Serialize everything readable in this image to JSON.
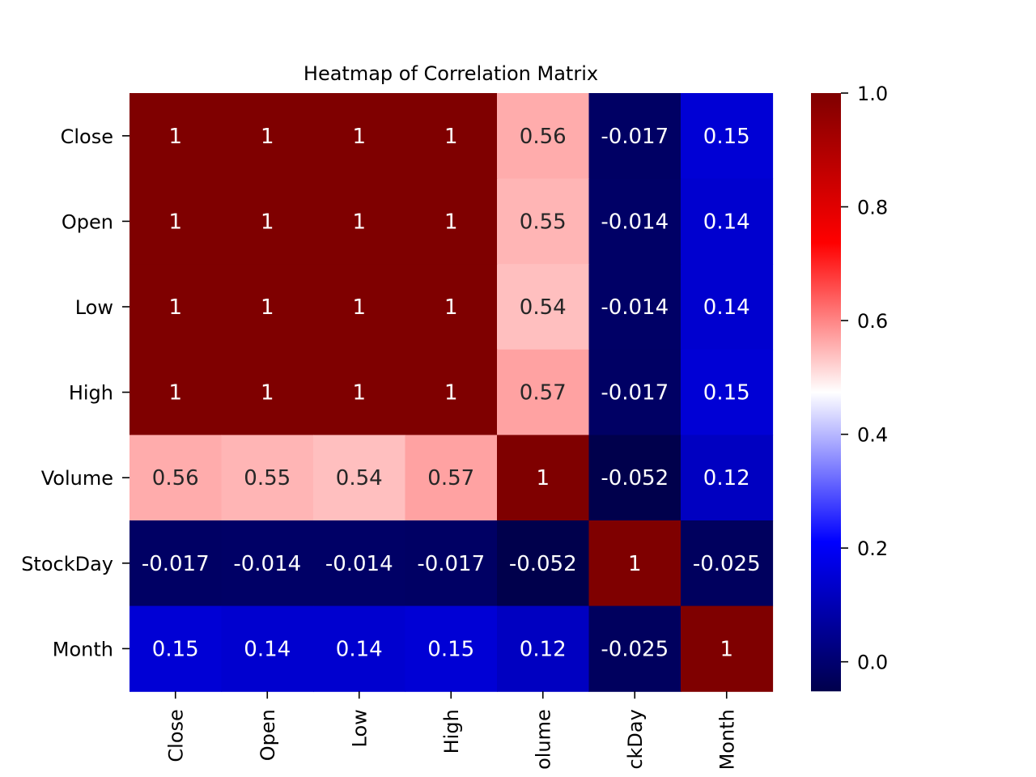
{
  "chart_data": {
    "type": "heatmap",
    "title": "Heatmap of Correlation Matrix",
    "rows": [
      "Close",
      "Open",
      "Low",
      "High",
      "Volume",
      "StockDay",
      "Month"
    ],
    "cols": [
      "Close",
      "Open",
      "Low",
      "High",
      "Volume",
      "StockDay",
      "Month"
    ],
    "x_tick_labels_visible": [
      "Close",
      "Open",
      "Low",
      "High",
      "olume",
      "ckDay",
      "Month"
    ],
    "values": [
      [
        1,
        1,
        1,
        1,
        0.56,
        -0.017,
        0.15
      ],
      [
        1,
        1,
        1,
        1,
        0.55,
        -0.014,
        0.14
      ],
      [
        1,
        1,
        1,
        1,
        0.54,
        -0.014,
        0.14
      ],
      [
        1,
        1,
        1,
        1,
        0.57,
        -0.017,
        0.15
      ],
      [
        0.56,
        0.55,
        0.54,
        0.57,
        1,
        -0.052,
        0.12
      ],
      [
        -0.017,
        -0.014,
        -0.014,
        -0.017,
        -0.052,
        1,
        -0.025
      ],
      [
        0.15,
        0.14,
        0.14,
        0.15,
        0.12,
        -0.025,
        1
      ]
    ],
    "annotations": [
      [
        "1",
        "1",
        "1",
        "1",
        "0.56",
        "-0.017",
        "0.15"
      ],
      [
        "1",
        "1",
        "1",
        "1",
        "0.55",
        "-0.014",
        "0.14"
      ],
      [
        "1",
        "1",
        "1",
        "1",
        "0.54",
        "-0.014",
        "0.14"
      ],
      [
        "1",
        "1",
        "1",
        "1",
        "0.57",
        "-0.017",
        "0.15"
      ],
      [
        "0.56",
        "0.55",
        "0.54",
        "0.57",
        "1",
        "-0.052",
        "0.12"
      ],
      [
        "-0.017",
        "-0.014",
        "-0.014",
        "-0.017",
        "-0.052",
        "1",
        "-0.025"
      ],
      [
        "0.15",
        "0.14",
        "0.14",
        "0.15",
        "0.12",
        "-0.025",
        "1"
      ]
    ],
    "colormap": "seismic",
    "colorbar": {
      "vmin": -0.052,
      "vmax": 1.0,
      "ticks": [
        0.0,
        0.2,
        0.4,
        0.6,
        0.8,
        1.0
      ],
      "tick_labels": [
        "0.0",
        "0.2",
        "0.4",
        "0.6",
        "0.8",
        "1.0"
      ],
      "colors": [
        "#00004c",
        "#0000ff",
        "#ffffff",
        "#ff0000",
        "#7f0000"
      ]
    },
    "annotation_text_colors": {
      "dark_cell": "#ffffff",
      "light_cell": "#262626"
    },
    "grid": false,
    "legend": "colorbar-right"
  }
}
